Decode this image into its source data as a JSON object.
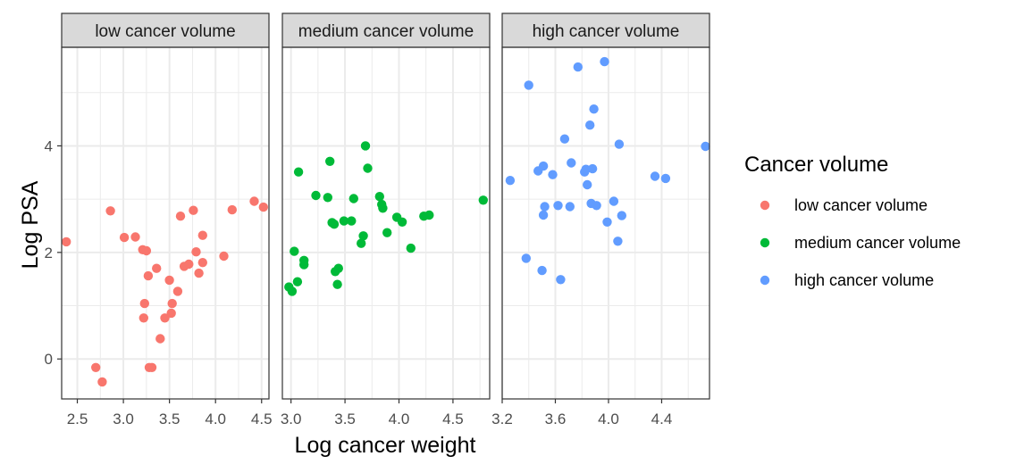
{
  "chart_data": {
    "type": "scatter",
    "xlabel": "Log cancer weight",
    "ylabel": "Log PSA",
    "ylim": [
      -0.75,
      5.85
    ],
    "y_ticks": [
      0,
      2,
      4
    ],
    "legend": {
      "title": "Cancer volume",
      "placement": "right",
      "entries": [
        "low cancer volume",
        "medium cancer volume",
        "high cancer volume"
      ]
    },
    "colors": {
      "low cancer volume": "#F8766D",
      "medium cancer volume": "#00BA38",
      "high cancer volume": "#619CFF",
      "strip_fill": "#D9D9D9",
      "grid": "#EBEBEB",
      "border": "#333333"
    },
    "panels": [
      {
        "strip": "low cancer volume",
        "xlim": [
          2.33,
          4.58
        ],
        "x_ticks": [
          2.5,
          3.0,
          3.5,
          4.0,
          4.5
        ],
        "x_tick_labels": [
          "2.5",
          "3.0",
          "3.5",
          "4.0",
          "4.5"
        ],
        "points": [
          [
            2.38,
            2.2
          ],
          [
            2.7,
            -0.16
          ],
          [
            2.77,
            -0.43
          ],
          [
            2.86,
            2.78
          ],
          [
            3.01,
            2.28
          ],
          [
            3.13,
            2.29
          ],
          [
            3.21,
            2.05
          ],
          [
            3.22,
            0.77
          ],
          [
            3.23,
            1.04
          ],
          [
            3.25,
            2.03
          ],
          [
            3.27,
            1.56
          ],
          [
            3.28,
            -0.16
          ],
          [
            3.31,
            -0.16
          ],
          [
            3.36,
            1.7
          ],
          [
            3.4,
            0.38
          ],
          [
            3.45,
            0.77
          ],
          [
            3.5,
            1.48
          ],
          [
            3.52,
            0.86
          ],
          [
            3.53,
            1.04
          ],
          [
            3.59,
            1.27
          ],
          [
            3.62,
            2.68
          ],
          [
            3.66,
            1.74
          ],
          [
            3.71,
            1.78
          ],
          [
            3.76,
            2.79
          ],
          [
            3.79,
            2.01
          ],
          [
            3.82,
            1.61
          ],
          [
            3.86,
            2.32
          ],
          [
            3.86,
            1.81
          ],
          [
            4.09,
            1.93
          ],
          [
            4.18,
            2.8
          ],
          [
            4.42,
            2.96
          ],
          [
            4.52,
            2.85
          ]
        ]
      },
      {
        "strip": "medium cancer volume",
        "xlim": [
          2.92,
          4.84
        ],
        "x_ticks": [
          3.0,
          3.5,
          4.0,
          4.5
        ],
        "x_tick_labels": [
          "3.0",
          "3.5",
          "4.0",
          "4.5"
        ],
        "points": [
          [
            2.98,
            1.35
          ],
          [
            3.01,
            1.27
          ],
          [
            3.03,
            2.02
          ],
          [
            3.06,
            1.45
          ],
          [
            3.07,
            3.51
          ],
          [
            3.12,
            1.85
          ],
          [
            3.12,
            1.77
          ],
          [
            3.23,
            3.07
          ],
          [
            3.34,
            3.03
          ],
          [
            3.36,
            3.71
          ],
          [
            3.38,
            2.56
          ],
          [
            3.4,
            2.53
          ],
          [
            3.41,
            1.64
          ],
          [
            3.43,
            1.4
          ],
          [
            3.44,
            1.7
          ],
          [
            3.49,
            2.59
          ],
          [
            3.56,
            2.59
          ],
          [
            3.58,
            3.01
          ],
          [
            3.65,
            2.17
          ],
          [
            3.67,
            2.31
          ],
          [
            3.69,
            4.0
          ],
          [
            3.71,
            3.58
          ],
          [
            3.82,
            3.05
          ],
          [
            3.84,
            2.9
          ],
          [
            3.85,
            2.83
          ],
          [
            3.89,
            2.37
          ],
          [
            3.98,
            2.66
          ],
          [
            4.03,
            2.57
          ],
          [
            4.11,
            2.08
          ],
          [
            4.23,
            2.68
          ],
          [
            4.28,
            2.7
          ],
          [
            4.78,
            2.98
          ]
        ]
      },
      {
        "strip": "high cancer volume",
        "xlim": [
          3.2,
          4.76
        ],
        "x_ticks": [
          3.2,
          3.6,
          4.0,
          4.4
        ],
        "x_tick_labels": [
          "3.2",
          "3.6",
          "4.0",
          "4.4"
        ],
        "points": [
          [
            3.26,
            3.35
          ],
          [
            3.38,
            1.89
          ],
          [
            3.4,
            5.14
          ],
          [
            3.47,
            3.53
          ],
          [
            3.5,
            1.66
          ],
          [
            3.51,
            2.7
          ],
          [
            3.51,
            3.62
          ],
          [
            3.52,
            2.86
          ],
          [
            3.58,
            3.46
          ],
          [
            3.62,
            2.88
          ],
          [
            3.64,
            1.49
          ],
          [
            3.67,
            4.13
          ],
          [
            3.71,
            2.86
          ],
          [
            3.72,
            3.68
          ],
          [
            3.77,
            5.48
          ],
          [
            3.82,
            3.51
          ],
          [
            3.83,
            3.56
          ],
          [
            3.84,
            3.27
          ],
          [
            3.86,
            4.39
          ],
          [
            3.87,
            2.92
          ],
          [
            3.88,
            3.57
          ],
          [
            3.89,
            4.69
          ],
          [
            3.91,
            2.88
          ],
          [
            3.97,
            5.58
          ],
          [
            3.99,
            2.57
          ],
          [
            4.04,
            2.96
          ],
          [
            4.07,
            2.21
          ],
          [
            4.08,
            4.03
          ],
          [
            4.1,
            2.69
          ],
          [
            4.35,
            3.43
          ],
          [
            4.43,
            3.39
          ],
          [
            4.73,
            3.99
          ]
        ]
      }
    ]
  }
}
